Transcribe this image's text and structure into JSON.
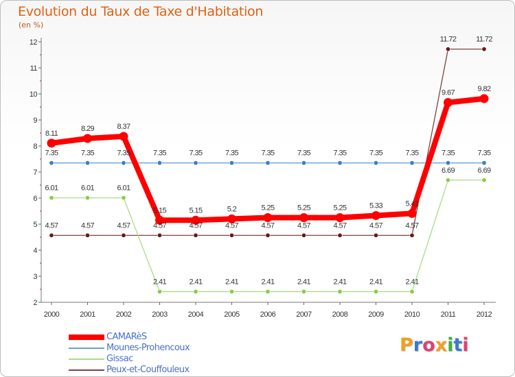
{
  "title": "Evolution du Taux de Taxe d'Habitation",
  "unit_label": "(en %)",
  "logo": {
    "letters": [
      "P",
      "r",
      "o",
      "x",
      "i",
      "t",
      "i"
    ],
    "colors": [
      "#f0a020",
      "#3a7ad0",
      "#e04070",
      "#f0a020",
      "#40b040",
      "#3a7ad0",
      "#e04070"
    ]
  },
  "chart_data": {
    "type": "line",
    "title": "Evolution du Taux de Taxe d'Habitation",
    "ylabel": "(en %)",
    "xlabel": "",
    "x": [
      "2000",
      "2001",
      "2002",
      "2003",
      "2004",
      "2005",
      "2006",
      "2007",
      "2008",
      "2009",
      "2010",
      "2011",
      "2012"
    ],
    "yticks": [
      "2",
      "3",
      "4",
      "5",
      "6",
      "7",
      "8",
      "9",
      "10",
      "11",
      "12"
    ],
    "ylim": [
      2,
      12
    ],
    "grid": false,
    "legend_position": "bottom-left",
    "series": [
      {
        "name": "CAMARèS",
        "color": "#ff0000",
        "values": [
          8.11,
          8.29,
          8.37,
          5.15,
          5.15,
          5.2,
          5.25,
          5.25,
          5.25,
          5.33,
          5.41,
          9.67,
          9.82
        ],
        "labels": [
          "8.11",
          "8.29",
          "8.37",
          "5.15",
          "5.15",
          "5.2",
          "5.25",
          "5.25",
          "5.25",
          "5.33",
          "5.41",
          "9.67",
          "9.82"
        ]
      },
      {
        "name": "Mounes-Prohencoux",
        "color": "#6aa0cc",
        "marker": "#3a80c0",
        "values": [
          7.35,
          7.35,
          7.35,
          7.35,
          7.35,
          7.35,
          7.35,
          7.35,
          7.35,
          7.35,
          7.35,
          7.35,
          7.35
        ],
        "labels": [
          "7.35",
          "7.35",
          "7.35",
          "7.35",
          "7.35",
          "7.35",
          "7.35",
          "7.35",
          "7.35",
          "7.35",
          "7.35",
          "7.35",
          "7.35"
        ]
      },
      {
        "name": "Gissac",
        "color": "#a8dc88",
        "marker": "#88cc44",
        "values": [
          6.01,
          6.01,
          6.01,
          2.41,
          2.41,
          2.41,
          2.41,
          2.41,
          2.41,
          2.41,
          2.41,
          6.69,
          6.69
        ],
        "labels": [
          "6.01",
          "6.01",
          "6.01",
          "2.41",
          "2.41",
          "2.41",
          "2.41",
          "2.41",
          "2.41",
          "2.41",
          "2.41",
          "6.69",
          "6.69"
        ]
      },
      {
        "name": "Peux-et-Couffouleux",
        "color": "#804040",
        "marker": "#6a1818",
        "values": [
          4.57,
          4.57,
          4.57,
          4.57,
          4.57,
          4.57,
          4.57,
          4.57,
          4.57,
          4.57,
          4.57,
          11.72,
          11.72
        ],
        "labels": [
          "4.57",
          "4.57",
          "4.57",
          "4.57",
          "4.57",
          "4.57",
          "4.57",
          "4.57",
          "4.57",
          "4.57",
          "4.57",
          "11.72",
          "11.72"
        ]
      }
    ]
  }
}
